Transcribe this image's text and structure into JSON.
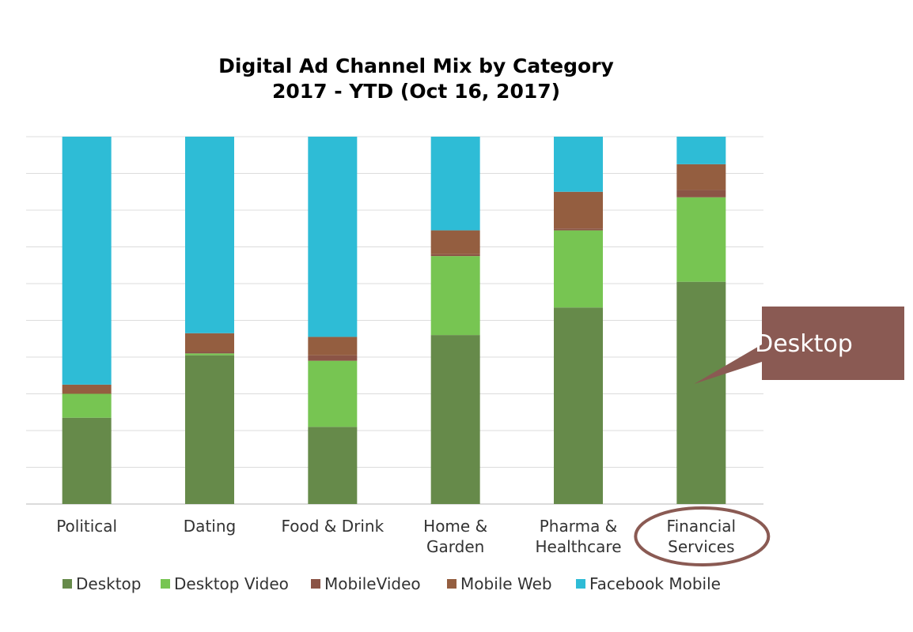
{
  "chart_data": {
    "type": "bar",
    "stacked": true,
    "normalized_percent": true,
    "title": "Digital Ad Channel Mix by Category",
    "subtitle": "2017 - YTD (Oct 16, 2017)",
    "xlabel": "",
    "ylabel": "",
    "ylim": [
      0,
      100
    ],
    "grid": true,
    "legend_position": "bottom",
    "categories": [
      [
        "Political"
      ],
      [
        "Dating"
      ],
      [
        "Food & Drink"
      ],
      [
        "Home &",
        "Garden"
      ],
      [
        "Pharma &",
        "Healthcare"
      ],
      [
        "Financial",
        "Services"
      ]
    ],
    "series": [
      {
        "name": "Desktop",
        "color": "#668a4a",
        "values": [
          23.5,
          40.5,
          21,
          46,
          53.5,
          60.5
        ]
      },
      {
        "name": "Desktop Video",
        "color": "#77c552",
        "values": [
          6.5,
          0.5,
          18,
          21.5,
          21,
          23
        ]
      },
      {
        "name": "MobileVideo",
        "color": "#8b5446",
        "values": [
          0,
          0.5,
          1.5,
          0.5,
          0.5,
          2
        ]
      },
      {
        "name": "Mobile Web",
        "color": "#945e40",
        "values": [
          2.5,
          5,
          5,
          6.5,
          10,
          7
        ]
      },
      {
        "name": "Facebook Mobile",
        "color": "#2ebcd6",
        "values": [
          67.5,
          53.5,
          54.5,
          25.5,
          15,
          7.5
        ]
      }
    ],
    "annotations": [
      {
        "type": "callout",
        "text": "Desktop",
        "target_category": "Financial Services",
        "target_series": "Desktop",
        "color": "#8a5a53"
      },
      {
        "type": "ellipse_highlight",
        "target_category": "Financial Services",
        "color": "#8a5a53"
      }
    ]
  }
}
